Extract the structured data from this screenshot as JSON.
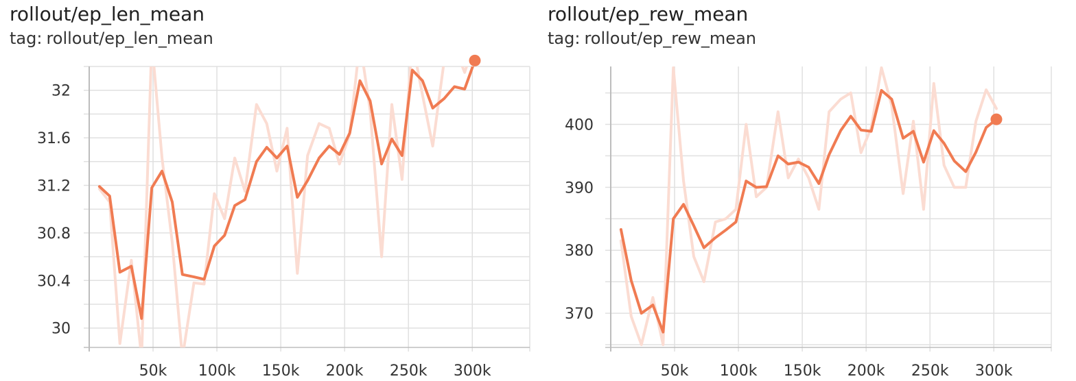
{
  "chart_data": [
    {
      "type": "line",
      "title": "rollout/ep_len_mean",
      "tag_prefix": "tag:",
      "tag": "rollout/ep_len_mean",
      "xlabel": "",
      "ylabel": "",
      "xlim": [
        0,
        345000
      ],
      "ylim": [
        29.86,
        32.2
      ],
      "x_ticks": [
        50000,
        100000,
        150000,
        200000,
        250000,
        300000
      ],
      "x_tick_labels": [
        "50k",
        "100k",
        "150k",
        "200k",
        "250k",
        "300k"
      ],
      "y_ticks": [
        30,
        30.4,
        30.8,
        31.2,
        31.6,
        32
      ],
      "y_tick_labels": [
        "30",
        "30.4",
        "30.8",
        "31.2",
        "31.6",
        "32"
      ],
      "grid": true,
      "colors": {
        "smoothed": "#f07b52",
        "raw": "#fbdcd2",
        "grid": "#e0e0e0",
        "axis": "#bdbdbd"
      },
      "series": [
        {
          "role": "raw",
          "x": [
            8000,
            16000,
            24000,
            33000,
            41000,
            49000,
            57000,
            65000,
            73000,
            82000,
            90000,
            98000,
            106000,
            114000,
            122000,
            131000,
            139000,
            147000,
            155000,
            163000,
            171000,
            180000,
            188000,
            196000,
            204000,
            212000,
            220000,
            229000,
            237000,
            245000,
            253000,
            261000,
            269000,
            278000,
            286000,
            294000,
            302000
          ],
          "y": [
            31.17,
            31.06,
            29.87,
            30.57,
            29.75,
            32.41,
            31.43,
            30.72,
            29.75,
            30.38,
            30.37,
            31.13,
            30.92,
            31.43,
            31.15,
            31.88,
            31.72,
            31.32,
            31.68,
            30.46,
            31.45,
            31.72,
            31.68,
            31.38,
            31.63,
            32.41,
            31.83,
            30.6,
            31.88,
            31.25,
            32.41,
            31.96,
            31.53,
            32.25,
            32.37,
            32.15,
            32.41
          ]
        },
        {
          "role": "smoothed",
          "x": [
            8000,
            16000,
            24000,
            33000,
            41000,
            49000,
            57000,
            65000,
            73000,
            82000,
            90000,
            98000,
            106000,
            114000,
            122000,
            131000,
            139000,
            147000,
            155000,
            163000,
            171000,
            180000,
            188000,
            196000,
            204000,
            212000,
            220000,
            229000,
            237000,
            245000,
            253000,
            261000,
            269000,
            278000,
            286000,
            294000,
            302000
          ],
          "y": [
            31.19,
            31.11,
            30.47,
            30.52,
            30.08,
            31.18,
            31.32,
            31.06,
            30.45,
            30.43,
            30.41,
            30.69,
            30.78,
            31.03,
            31.08,
            31.4,
            31.52,
            31.43,
            31.53,
            31.1,
            31.24,
            31.43,
            31.53,
            31.46,
            31.64,
            32.08,
            31.91,
            31.38,
            31.59,
            31.45,
            32.17,
            32.08,
            31.85,
            31.93,
            32.03,
            32.01,
            32.25
          ]
        }
      ]
    },
    {
      "type": "line",
      "title": "rollout/ep_rew_mean",
      "tag_prefix": "tag:",
      "tag": "rollout/ep_rew_mean",
      "xlabel": "",
      "ylabel": "",
      "xlim": [
        0,
        345000
      ],
      "ylim": [
        365,
        409.2
      ],
      "x_ticks": [
        50000,
        100000,
        150000,
        200000,
        250000,
        300000
      ],
      "x_tick_labels": [
        "50k",
        "100k",
        "150k",
        "200k",
        "250k",
        "300k"
      ],
      "y_ticks": [
        370,
        380,
        390,
        400
      ],
      "y_tick_labels": [
        "370",
        "380",
        "390",
        "400"
      ],
      "grid": true,
      "colors": {
        "smoothed": "#f07b52",
        "raw": "#fbdcd2",
        "grid": "#e0e0e0",
        "axis": "#bdbdbd"
      },
      "series": [
        {
          "role": "raw",
          "x": [
            8000,
            16000,
            24000,
            33000,
            41000,
            49000,
            57000,
            65000,
            73000,
            82000,
            90000,
            98000,
            106000,
            114000,
            122000,
            131000,
            139000,
            147000,
            155000,
            163000,
            171000,
            180000,
            188000,
            196000,
            204000,
            212000,
            220000,
            229000,
            237000,
            245000,
            253000,
            261000,
            269000,
            278000,
            286000,
            294000,
            302000
          ],
          "y": [
            381.5,
            369.5,
            365.0,
            372.5,
            365.0,
            409.0,
            391.0,
            379.0,
            375.0,
            384.5,
            385.0,
            386.5,
            400.0,
            388.5,
            390.0,
            402.0,
            391.5,
            394.5,
            391.5,
            386.5,
            402.0,
            404.0,
            405.0,
            395.5,
            399.5,
            409.0,
            403.0,
            389.0,
            400.5,
            386.5,
            406.5,
            393.5,
            390.0,
            390.0,
            400.5,
            405.5,
            402.5
          ]
        },
        {
          "role": "smoothed",
          "x": [
            8000,
            16000,
            24000,
            33000,
            41000,
            49000,
            57000,
            65000,
            73000,
            82000,
            90000,
            98000,
            106000,
            114000,
            122000,
            131000,
            139000,
            147000,
            155000,
            163000,
            171000,
            180000,
            188000,
            196000,
            204000,
            212000,
            220000,
            229000,
            237000,
            245000,
            253000,
            261000,
            269000,
            278000,
            286000,
            294000,
            302000
          ],
          "y": [
            383.3,
            375.2,
            370.0,
            371.3,
            367.0,
            385.0,
            387.3,
            383.9,
            380.4,
            382.0,
            383.2,
            384.5,
            391.0,
            390.0,
            390.1,
            395.0,
            393.7,
            394.0,
            393.2,
            390.6,
            395.2,
            399.0,
            401.3,
            399.1,
            398.9,
            405.4,
            404.0,
            397.8,
            398.9,
            394.0,
            399.0,
            397.0,
            394.2,
            392.5,
            395.6,
            399.5,
            400.8
          ]
        }
      ]
    }
  ]
}
